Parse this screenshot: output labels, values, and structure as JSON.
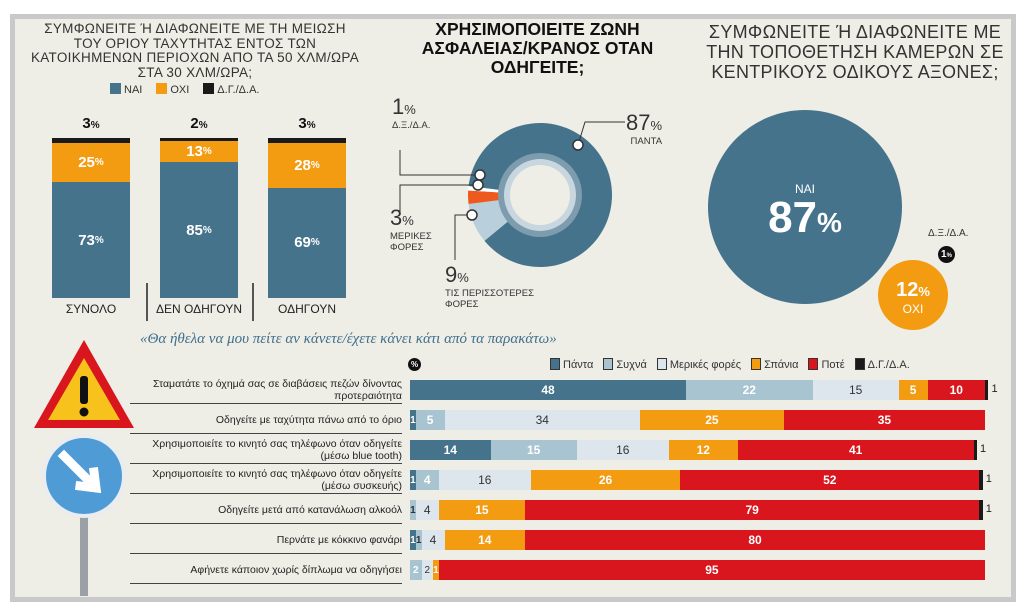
{
  "colors": {
    "yes": "#46738c",
    "no": "#f39c12",
    "dk": "#1a1a1a",
    "always": "#46738c",
    "often": "#a9c4d1",
    "sometimes": "#dde6ec",
    "rarely": "#f39c12",
    "never": "#d9161d",
    "bg": "#eeede6"
  },
  "chart_data": [
    {
      "type": "bar",
      "stacked": true,
      "title": "ΣΥΜΦΩΝΕΙΤΕ Ή ΔΙΑΦΩΝΕΙΤΕ ΜΕ ΤΗ ΜΕΙΩΣΗ ΤΟΥ ΟΡΙΟΥ ΤΑΧΥΤΗΤΑΣ ΕΝΤΟΣ ΤΩΝ ΚΑΤΟΙΚΗΜΕΝΩΝ ΠΕΡΙΟΧΩΝ ΑΠΟ ΤΑ 50 ΧΛΜ/ΩΡΑ ΣΤΑ 30 ΧΛΜ/ΩΡΑ;",
      "categories": [
        "ΣΥΝΟΛΟ",
        "ΔΕΝ ΟΔΗΓΟΥΝ",
        "ΟΔΗΓΟΥΝ"
      ],
      "series": [
        {
          "name": "ΝΑΙ",
          "values": [
            73,
            85,
            69
          ]
        },
        {
          "name": "ΟΧΙ",
          "values": [
            25,
            13,
            28
          ]
        },
        {
          "name": "Δ.Γ./Δ.Α.",
          "values": [
            3,
            2,
            3
          ]
        }
      ],
      "unit": "%",
      "legend": "top"
    },
    {
      "type": "pie",
      "donut": true,
      "title": "ΧΡΗΣΙΜΟΠΟΙΕΙΤΕ ΖΩΝΗ ΑΣΦΑΛΕΙΑΣ/ΚΡΑΝΟΣ ΟΤΑΝ ΟΔΗΓΕΙΤΕ;",
      "slices": [
        {
          "label": "ΠΑΝΤΑ",
          "value": 87
        },
        {
          "label": "ΤΙΣ ΠΕΡΙΣΣΟΤΕΡΕΣ ΦΟΡΕΣ",
          "value": 9
        },
        {
          "label": "ΜΕΡΙΚΕΣ ΦΟΡΕΣ",
          "value": 3
        },
        {
          "label": "Δ.Ξ./Δ.Α.",
          "value": 1
        }
      ],
      "unit": "%"
    },
    {
      "type": "bubble",
      "title": "ΣΥΜΦΩΝΕΙΤΕ Ή ΔΙΑΦΩΝΕΙΤΕ ΜΕ ΤΗΝ ΤΟΠΟΘΕΤΗΣΗ ΚΑΜΕΡΩΝ ΣΕ ΚΕΝΤΡΙΚΟΥΣ ΟΔΙΚΟΥΣ ΑΞΟΝΕΣ;",
      "slices": [
        {
          "label": "ΝΑΙ",
          "value": 87
        },
        {
          "label": "ΟΧΙ",
          "value": 12
        },
        {
          "label": "Δ.Ξ./Δ.Α.",
          "value": 1
        }
      ],
      "unit": "%"
    },
    {
      "type": "bar",
      "orientation": "horizontal",
      "stacked": true,
      "title": "«Θα ήθελα να μου πείτε αν κάνετε/έχετε κάνει κάτι από τα παρακάτω»",
      "unit": "%",
      "legend": "top-right",
      "categories": [
        "Σταματάτε το όχημά σας σε διαβάσεις πεζών δίνοντας προτεραιότητα",
        "Οδηγείτε με ταχύτητα πάνω από το όριο",
        "Χρησιμοποιείτε το κινητό σας τηλέφωνο όταν οδηγείτε (μέσω blue tooth)",
        "Χρησιμοποιείτε το κινητό σας τηλέφωνο όταν οδηγείτε (μέσω συσκευής)",
        "Οδηγείτε μετά από κατανάλωση αλκοόλ",
        "Περνάτε με κόκκινο φανάρι",
        "Αφήνετε κάποιον χωρίς δίπλωμα να οδηγήσει"
      ],
      "series": [
        {
          "name": "Πάντα",
          "values": [
            48,
            1,
            14,
            1,
            0,
            1,
            0
          ]
        },
        {
          "name": "Συχνά",
          "values": [
            22,
            5,
            15,
            4,
            1,
            1,
            2
          ]
        },
        {
          "name": "Μερικές φορές",
          "values": [
            15,
            34,
            16,
            16,
            4,
            4,
            2
          ]
        },
        {
          "name": "Σπάνια",
          "values": [
            5,
            25,
            12,
            26,
            15,
            14,
            1
          ]
        },
        {
          "name": "Ποτέ",
          "values": [
            10,
            35,
            41,
            52,
            79,
            80,
            95
          ]
        },
        {
          "name": "Δ.Γ./Δ.Α.",
          "values": [
            1,
            0,
            1,
            1,
            1,
            0,
            0
          ]
        }
      ]
    }
  ],
  "pct": "%",
  "percent_badge": "%"
}
